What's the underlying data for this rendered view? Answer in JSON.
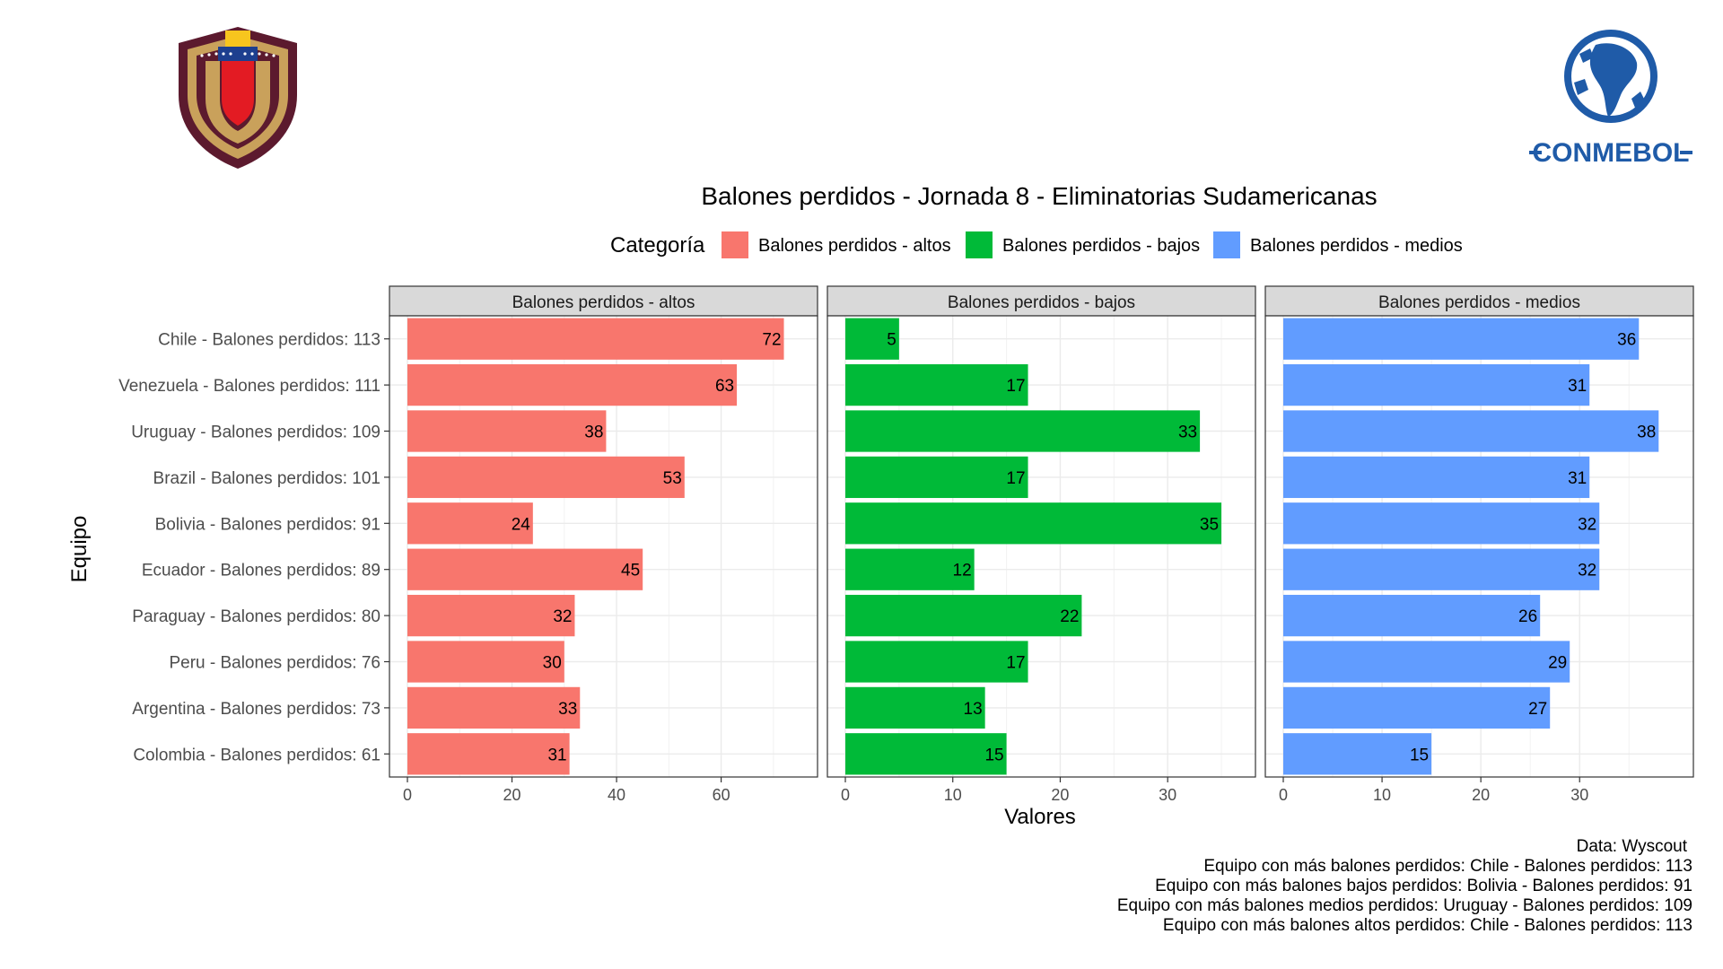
{
  "chart_data": {
    "type": "bar",
    "orientation": "horizontal",
    "title": "Balones perdidos - Jornada 8 - Eliminatorias Sudamericanas",
    "xlabel": "Valores",
    "ylabel": "Equipo",
    "legend_title": "Categoría",
    "legend_position": "top",
    "grid": true,
    "categories": [
      "Chile - Balones perdidos: 113",
      "Venezuela - Balones perdidos: 111",
      "Uruguay - Balones perdidos: 109",
      "Brazil - Balones perdidos: 101",
      "Bolivia - Balones perdidos: 91",
      "Ecuador - Balones perdidos: 89",
      "Paraguay - Balones perdidos: 80",
      "Peru - Balones perdidos: 76",
      "Argentina - Balones perdidos: 73",
      "Colombia - Balones perdidos: 61"
    ],
    "series": [
      {
        "name": "Balones perdidos - altos",
        "color": "#F8766D",
        "values": [
          72,
          63,
          38,
          53,
          24,
          45,
          32,
          30,
          33,
          31
        ],
        "xlim": [
          0,
          75
        ],
        "ticks": [
          0,
          20,
          40,
          60
        ]
      },
      {
        "name": "Balones perdidos - bajos",
        "color": "#00BA38",
        "values": [
          5,
          17,
          33,
          17,
          35,
          12,
          22,
          17,
          13,
          15
        ],
        "xlim": [
          0,
          36.5
        ],
        "ticks": [
          0,
          10,
          20,
          30
        ]
      },
      {
        "name": "Balones perdidos - medios",
        "color": "#619CFF",
        "values": [
          36,
          31,
          38,
          31,
          32,
          32,
          26,
          29,
          27,
          15
        ],
        "xlim": [
          0,
          39.7
        ],
        "ticks": [
          0,
          10,
          20,
          30
        ]
      }
    ],
    "caption": [
      "Data: Wyscout",
      "Equipo con más balones perdidos: Chile - Balones perdidos: 113",
      "Equipo con más balones bajos perdidos: Bolivia - Balones perdidos: 91",
      "Equipo con más balones medios perdidos: Uruguay - Balones perdidos: 109",
      "Equipo con más balones altos perdidos: Chile - Balones perdidos: 113"
    ]
  },
  "logos": {
    "left": {
      "icon": "venezuela-federation-crest-icon",
      "colors": [
        "#5C1A2E",
        "#C9A15B",
        "#F7C51E",
        "#1D3F8F",
        "#E31B23"
      ]
    },
    "right": {
      "icon": "conmebol-logo-icon",
      "text": "CONMEBOL",
      "color": "#1F5BA8"
    }
  }
}
